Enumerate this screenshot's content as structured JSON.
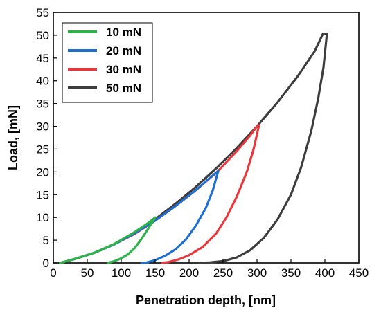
{
  "chart_data": {
    "type": "line",
    "title": "",
    "xlabel": "Penetration depth, [nm]",
    "ylabel": "Load, [mN]",
    "xlim": [
      0,
      450
    ],
    "ylim": [
      0,
      55
    ],
    "xticks": [
      "0",
      "50",
      "100",
      "150",
      "200",
      "250",
      "300",
      "350",
      "400",
      "450"
    ],
    "yticks": [
      "0",
      "5",
      "10",
      "15",
      "20",
      "25",
      "30",
      "35",
      "40",
      "45",
      "50",
      "55"
    ],
    "legend_position": "top-left",
    "grid": false,
    "series": [
      {
        "name": "10 mN",
        "color": "#2eb34a",
        "loading": [
          [
            10,
            0
          ],
          [
            30,
            0.8
          ],
          [
            60,
            2.2
          ],
          [
            90,
            4.2
          ],
          [
            120,
            6.8
          ],
          [
            140,
            8.8
          ],
          [
            150,
            10
          ]
        ],
        "unloading": [
          [
            150,
            10
          ],
          [
            140,
            7.6
          ],
          [
            130,
            5.3
          ],
          [
            120,
            3.3
          ],
          [
            110,
            1.9
          ],
          [
            100,
            1.0
          ],
          [
            90,
            0.4
          ],
          [
            80,
            0
          ]
        ]
      },
      {
        "name": "20 mN",
        "color": "#1f6fd1",
        "loading": [
          [
            10,
            0
          ],
          [
            30,
            0.8
          ],
          [
            60,
            2.2
          ],
          [
            90,
            4.1
          ],
          [
            120,
            6.5
          ],
          [
            150,
            9.3
          ],
          [
            180,
            12.5
          ],
          [
            210,
            16
          ],
          [
            230,
            18.6
          ],
          [
            243,
            20.2
          ]
        ],
        "unloading": [
          [
            243,
            20.2
          ],
          [
            235,
            16
          ],
          [
            225,
            12.2
          ],
          [
            210,
            8.2
          ],
          [
            195,
            5.1
          ],
          [
            180,
            3
          ],
          [
            165,
            1.6
          ],
          [
            150,
            0.6
          ],
          [
            138,
            0.1
          ],
          [
            130,
            0
          ]
        ]
      },
      {
        "name": "30 mN",
        "color": "#e8383d",
        "loading": [
          [
            10,
            0
          ],
          [
            30,
            0.8
          ],
          [
            60,
            2.2
          ],
          [
            90,
            4.1
          ],
          [
            120,
            6.4
          ],
          [
            150,
            9.3
          ],
          [
            180,
            12.5
          ],
          [
            210,
            16
          ],
          [
            240,
            19.8
          ],
          [
            270,
            24.5
          ],
          [
            290,
            28
          ],
          [
            301,
            30.2
          ]
        ],
        "unloading": [
          [
            303,
            30.2
          ],
          [
            295,
            25
          ],
          [
            285,
            20
          ],
          [
            270,
            14.5
          ],
          [
            255,
            10
          ],
          [
            240,
            6.5
          ],
          [
            220,
            3.5
          ],
          [
            200,
            1.7
          ],
          [
            185,
            0.8
          ],
          [
            170,
            0.2
          ],
          [
            160,
            0
          ]
        ]
      },
      {
        "name": "50 mN",
        "color": "#3d3d3d",
        "loading": [
          [
            10,
            0
          ],
          [
            30,
            0.8
          ],
          [
            60,
            2.2
          ],
          [
            90,
            4.1
          ],
          [
            120,
            6.6
          ],
          [
            150,
            9.6
          ],
          [
            180,
            13
          ],
          [
            210,
            16.7
          ],
          [
            240,
            20.8
          ],
          [
            270,
            25.2
          ],
          [
            300,
            30
          ],
          [
            330,
            35.2
          ],
          [
            360,
            41
          ],
          [
            385,
            46.5
          ],
          [
            397,
            50.3
          ]
        ],
        "unloading": [
          [
            397,
            50.3
          ],
          [
            403,
            50.3
          ],
          [
            398,
            43
          ],
          [
            390,
            36
          ],
          [
            380,
            29
          ],
          [
            365,
            21
          ],
          [
            350,
            15
          ],
          [
            330,
            9.5
          ],
          [
            310,
            5.5
          ],
          [
            290,
            2.8
          ],
          [
            270,
            1.2
          ],
          [
            250,
            0.4
          ],
          [
            230,
            0.1
          ],
          [
            215,
            0
          ]
        ]
      }
    ]
  }
}
